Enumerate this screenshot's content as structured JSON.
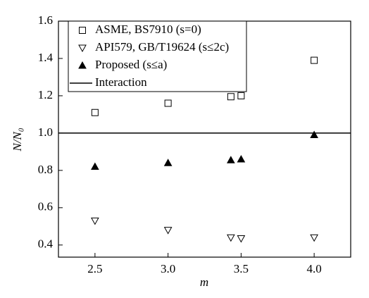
{
  "chart_data": {
    "type": "scatter",
    "x_label": "m",
    "y_label": "N/N₀",
    "xlim": [
      2.25,
      4.25
    ],
    "ylim": [
      0.335,
      1.6
    ],
    "xticks": [
      2.5,
      {
        "value": 3.0,
        "label": "3.0"
      },
      3.5,
      {
        "value": 4.0,
        "label": "4.0"
      }
    ],
    "yticks": [
      0.4,
      0.6,
      0.8,
      {
        "value": 1.0,
        "label": "1.0"
      },
      1.2,
      1.4,
      1.6
    ],
    "legend": "upper left",
    "series": [
      {
        "name": "ASME, BS7910 (s=0)",
        "marker": "square",
        "color": "#000000",
        "x": [
          2.5,
          3.0,
          3.43,
          3.5,
          4.0
        ],
        "values": [
          1.11,
          1.16,
          1.195,
          1.2,
          1.39
        ]
      },
      {
        "name": "API579, GB/T19624 (s≤2c)",
        "marker": "triangle-down",
        "color": "#000000",
        "x": [
          2.5,
          3.0,
          3.43,
          3.5,
          4.0
        ],
        "values": [
          0.53,
          0.48,
          0.44,
          0.435,
          0.44
        ]
      },
      {
        "name": "Proposed (s≤a)",
        "marker": "triangle-up-filled",
        "color": "#000000",
        "x": [
          2.5,
          3.0,
          3.43,
          3.5,
          4.0
        ],
        "values": [
          0.82,
          0.84,
          0.855,
          0.86,
          0.99
        ]
      },
      {
        "name": "Interaction",
        "marker": "line",
        "color": "#000000",
        "x": [
          2.25,
          4.25
        ],
        "values": [
          1.0,
          1.0
        ]
      }
    ]
  }
}
